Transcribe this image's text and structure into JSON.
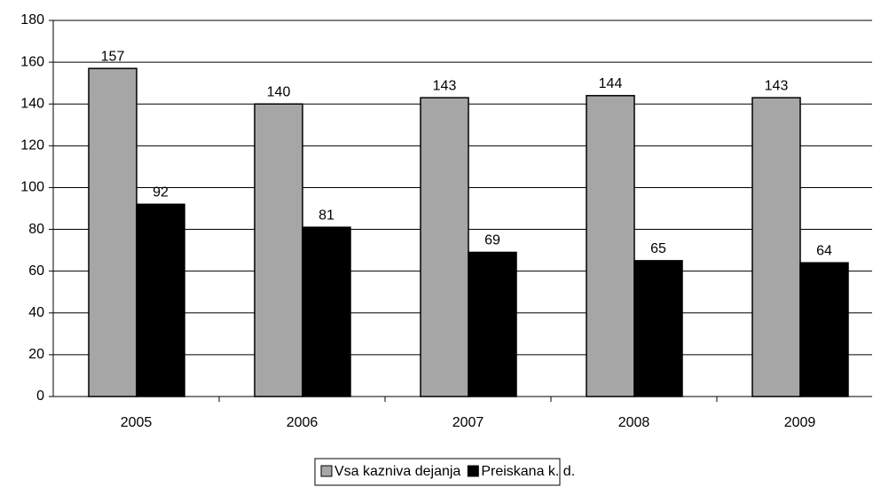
{
  "chart_data": {
    "type": "bar",
    "categories": [
      "2005",
      "2006",
      "2007",
      "2008",
      "2009"
    ],
    "series": [
      {
        "name": "Vsa kazniva dejanja",
        "color": "#a6a6a6",
        "values": [
          157,
          140,
          143,
          144,
          143
        ]
      },
      {
        "name": "Preiskana k. d.",
        "color": "#000000",
        "values": [
          92,
          81,
          69,
          65,
          64
        ]
      }
    ],
    "ylim": [
      0,
      180
    ],
    "yticks": [
      0,
      20,
      40,
      60,
      80,
      100,
      120,
      140,
      160,
      180
    ],
    "grid": true,
    "legend": "bottom"
  }
}
